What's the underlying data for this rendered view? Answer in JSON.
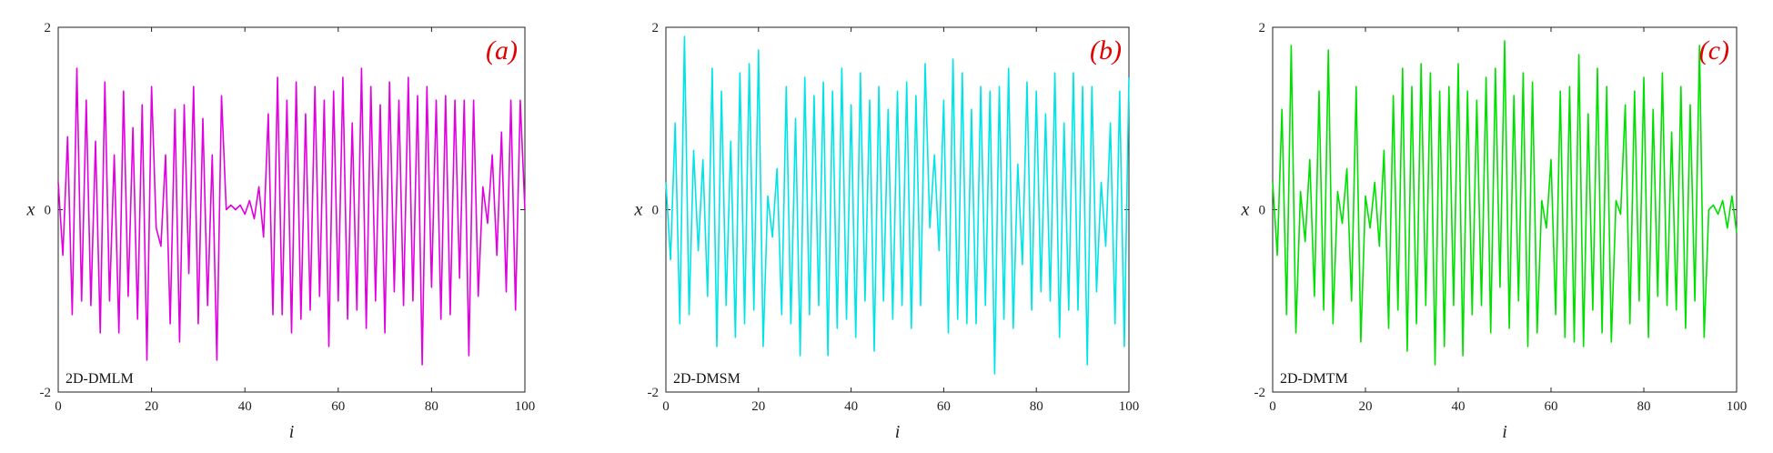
{
  "chart_data": [
    {
      "type": "line",
      "panel_label": "(a)",
      "map_label": "2D-DMLM",
      "color": "#e000e0",
      "xlabel": "i",
      "ylabel": "x",
      "xlim": [
        0,
        100
      ],
      "ylim": [
        -2,
        2
      ],
      "xticks": [
        "0",
        "20",
        "40",
        "60",
        "80",
        "100"
      ],
      "yticks": [
        "-2",
        "0",
        "2"
      ],
      "grid": false,
      "x": [
        0,
        1,
        2,
        3,
        4,
        5,
        6,
        7,
        8,
        9,
        10,
        11,
        12,
        13,
        14,
        15,
        16,
        17,
        18,
        19,
        20,
        21,
        22,
        23,
        24,
        25,
        26,
        27,
        28,
        29,
        30,
        31,
        32,
        33,
        34,
        35,
        36,
        37,
        38,
        39,
        40,
        41,
        42,
        43,
        44,
        45,
        46,
        47,
        48,
        49,
        50,
        51,
        52,
        53,
        54,
        55,
        56,
        57,
        58,
        59,
        60,
        61,
        62,
        63,
        64,
        65,
        66,
        67,
        68,
        69,
        70,
        71,
        72,
        73,
        74,
        75,
        76,
        77,
        78,
        79,
        80,
        81,
        82,
        83,
        84,
        85,
        86,
        87,
        88,
        89,
        90,
        91,
        92,
        93,
        94,
        95,
        96,
        97,
        98,
        99,
        100
      ],
      "values": [
        0.3,
        -0.5,
        0.8,
        -1.15,
        1.55,
        -1.0,
        1.2,
        -1.05,
        0.75,
        -1.35,
        1.4,
        -1.0,
        0.6,
        -1.35,
        1.3,
        -0.95,
        0.9,
        -1.2,
        1.15,
        -1.65,
        1.35,
        -0.2,
        -0.4,
        0.6,
        -1.25,
        1.1,
        -1.45,
        1.15,
        -0.7,
        1.35,
        -1.25,
        1.0,
        -1.05,
        0.6,
        -1.65,
        1.25,
        0.0,
        0.05,
        0.0,
        0.05,
        -0.05,
        0.1,
        -0.1,
        0.25,
        -0.3,
        1.05,
        -1.15,
        1.45,
        -1.15,
        1.2,
        -1.35,
        1.4,
        -1.2,
        1.05,
        -1.1,
        1.35,
        -0.95,
        1.2,
        -1.5,
        1.3,
        -1.0,
        1.45,
        -1.2,
        0.95,
        -1.1,
        1.55,
        -1.3,
        1.35,
        -1.0,
        1.15,
        -1.35,
        1.4,
        -0.9,
        1.2,
        -1.05,
        1.45,
        -1.0,
        1.25,
        -1.7,
        1.35,
        -0.85,
        1.2,
        -1.2,
        1.25,
        -1.15,
        1.2,
        -0.75,
        1.2,
        -1.6,
        1.2,
        -0.95,
        0.25,
        -0.15,
        0.6,
        -0.5,
        0.85,
        -0.9,
        1.2,
        -1.1,
        1.2,
        0.0
      ],
      "x_end": 100
    },
    {
      "type": "line",
      "panel_label": "(b)",
      "map_label": "2D-DMSM",
      "color": "#00e4e8",
      "xlabel": "i",
      "ylabel": "x",
      "xlim": [
        0,
        100
      ],
      "ylim": [
        -2,
        2
      ],
      "xticks": [
        "0",
        "20",
        "40",
        "60",
        "80",
        "100"
      ],
      "yticks": [
        "-2",
        "0",
        "2"
      ],
      "grid": false,
      "x": [
        0,
        1,
        2,
        3,
        4,
        5,
        6,
        7,
        8,
        9,
        10,
        11,
        12,
        13,
        14,
        15,
        16,
        17,
        18,
        19,
        20,
        21,
        22,
        23,
        24,
        25,
        26,
        27,
        28,
        29,
        30,
        31,
        32,
        33,
        34,
        35,
        36,
        37,
        38,
        39,
        40,
        41,
        42,
        43,
        44,
        45,
        46,
        47,
        48,
        49,
        50,
        51,
        52,
        53,
        54,
        55,
        56,
        57,
        58,
        59,
        60,
        61,
        62,
        63,
        64,
        65,
        66,
        67,
        68,
        69,
        70,
        71,
        72,
        73,
        74,
        75,
        76,
        77,
        78,
        79,
        80,
        81,
        82,
        83,
        84,
        85,
        86,
        87,
        88,
        89,
        90,
        91,
        92,
        93,
        94,
        95,
        96,
        97,
        98,
        99,
        100
      ],
      "values": [
        0.3,
        -0.55,
        0.95,
        -1.25,
        1.9,
        -1.15,
        0.65,
        -0.45,
        0.55,
        -0.95,
        1.55,
        -1.5,
        1.3,
        -1.05,
        0.75,
        -1.4,
        1.5,
        -1.25,
        1.6,
        -1.1,
        1.75,
        -1.5,
        0.15,
        -0.3,
        0.45,
        -1.15,
        1.35,
        -1.25,
        1.0,
        -1.6,
        1.45,
        -1.15,
        1.25,
        -1.05,
        1.4,
        -1.6,
        1.3,
        -1.3,
        1.55,
        -1.2,
        1.15,
        -1.4,
        1.5,
        -1.0,
        1.2,
        -1.55,
        1.35,
        -1.0,
        1.1,
        -1.2,
        1.3,
        -1.05,
        1.4,
        -1.3,
        1.25,
        -1.05,
        1.6,
        -0.2,
        0.6,
        -0.45,
        1.2,
        -1.35,
        1.65,
        -1.2,
        1.5,
        -1.25,
        1.1,
        -1.25,
        1.35,
        -1.05,
        1.3,
        -1.8,
        1.35,
        -1.2,
        1.55,
        -1.3,
        0.5,
        -0.6,
        1.4,
        -1.1,
        1.3,
        -0.9,
        1.05,
        -1.0,
        1.5,
        -1.4,
        0.95,
        -1.1,
        1.5,
        -1.1,
        1.35,
        -1.7,
        1.35,
        -0.9,
        0.3,
        -0.4,
        0.95,
        -1.25,
        1.3,
        -1.5,
        1.45
      ],
      "x_end": 100
    },
    {
      "type": "line",
      "panel_label": "(c)",
      "map_label": "2D-DMTM",
      "color": "#00e000",
      "xlabel": "i",
      "ylabel": "x",
      "xlim": [
        0,
        100
      ],
      "ylim": [
        -2,
        2
      ],
      "xticks": [
        "0",
        "20",
        "40",
        "60",
        "80",
        "100"
      ],
      "yticks": [
        "-2",
        "0",
        "2"
      ],
      "grid": false,
      "x": [
        0,
        1,
        2,
        3,
        4,
        5,
        6,
        7,
        8,
        9,
        10,
        11,
        12,
        13,
        14,
        15,
        16,
        17,
        18,
        19,
        20,
        21,
        22,
        23,
        24,
        25,
        26,
        27,
        28,
        29,
        30,
        31,
        32,
        33,
        34,
        35,
        36,
        37,
        38,
        39,
        40,
        41,
        42,
        43,
        44,
        45,
        46,
        47,
        48,
        49,
        50,
        51,
        52,
        53,
        54,
        55,
        56,
        57,
        58,
        59,
        60,
        61,
        62,
        63,
        64,
        65,
        66,
        67,
        68,
        69,
        70,
        71,
        72,
        73,
        74,
        75,
        76,
        77,
        78,
        79,
        80,
        81,
        82,
        83,
        84,
        85,
        86,
        87,
        88,
        89,
        90,
        91,
        92,
        93,
        94,
        95,
        96,
        97,
        98,
        99,
        100
      ],
      "values": [
        0.3,
        -0.5,
        1.1,
        -1.15,
        1.8,
        -1.35,
        0.2,
        -0.35,
        0.55,
        -0.95,
        1.3,
        -1.1,
        1.75,
        -1.25,
        0.2,
        -0.15,
        0.45,
        -1.0,
        1.35,
        -1.45,
        0.15,
        -0.2,
        0.3,
        -0.4,
        0.65,
        -1.3,
        1.25,
        -1.1,
        1.55,
        -1.55,
        1.35,
        -1.25,
        1.6,
        -1.05,
        1.5,
        -1.7,
        1.3,
        -1.5,
        1.35,
        -1.05,
        1.6,
        -1.6,
        1.3,
        -1.15,
        1.2,
        -1.05,
        1.45,
        -1.35,
        1.55,
        -0.85,
        1.85,
        -1.3,
        1.25,
        -1.0,
        1.5,
        -1.5,
        1.4,
        -1.35,
        0.1,
        -0.2,
        0.55,
        -1.15,
        1.3,
        -1.4,
        1.35,
        -1.45,
        1.7,
        -1.5,
        1.05,
        -1.1,
        1.55,
        -1.35,
        1.35,
        -1.45,
        0.1,
        -0.05,
        1.15,
        -1.25,
        1.3,
        -1.0,
        1.45,
        -1.4,
        1.1,
        -0.95,
        1.5,
        -1.05,
        0.85,
        -1.1,
        1.35,
        -1.3,
        1.15,
        -1.0,
        1.8,
        -1.4,
        0.0,
        0.05,
        -0.05,
        0.1,
        -0.2,
        0.15,
        -0.25
      ],
      "x_end": 100
    }
  ]
}
